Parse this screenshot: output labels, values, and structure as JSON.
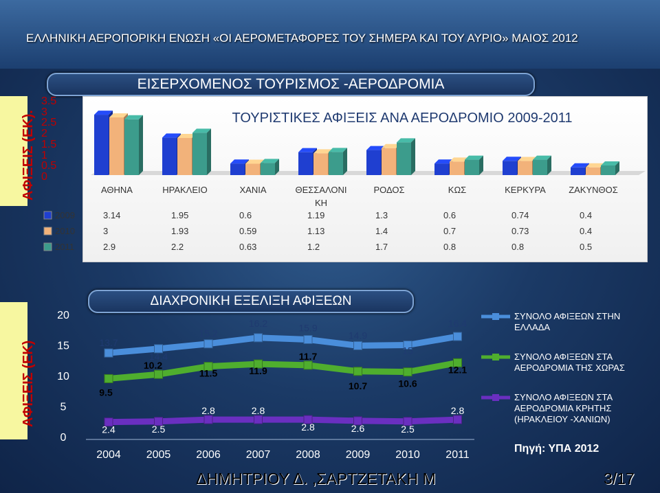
{
  "header": {
    "title": "ΕΛΛΗΝΙΚΗ ΑΕΡΟΠΟΡΙΚΗ ΕΝΩΣΗ «ΟΙ ΑΕΡΟΜΕΤΑΦΟΡΕΣ ΤΟΥ ΣΗΜΕΡΑ ΚΑΙ ΤΟΥ ΑΥΡΙΟ» ΜΑΙΟΣ 2012"
  },
  "section": {
    "title": "ΕΙΣΕΡΧΟΜΕΝΟΣ ΤΟΥΡΙΣΜΟΣ -ΑΕΡΟΔΡΟΜΙΑ"
  },
  "footer": {
    "author": "ΔΗΜΗΤΡΙΟΥ Δ. ,ΣΑΡΤΖΕΤΑΚΗ Μ",
    "page": "3/17"
  },
  "source": "Πηγή: ΥΠΑ 2012",
  "colors": {
    "s2009": "#1f3fd0",
    "s2010": "#f2b27a",
    "s2011": "#3c9c8c",
    "total_greece": "#4a8edb",
    "total_airports": "#4fae2e",
    "total_crete": "#6a2fc0"
  },
  "chart_data": [
    {
      "type": "bar",
      "title": "ΤΟΥΡΙΣΤΙΚΕΣ ΑΦΙΞΕΙΣ ΑΝΑ ΑΕΡΟΔΡΟΜΙΟ 2009-2011",
      "ylabel": "ΑΦΙΞΕΙΣ (ΕΚ).",
      "yticks": [
        "0",
        "0.5",
        "1",
        "1.5",
        "2",
        "2.5",
        "3",
        "3.5"
      ],
      "ylim": [
        0,
        3.5
      ],
      "categories": [
        "ΑΘΗΝΑ",
        "ΗΡΑΚΛΕΙΟ",
        "ΧΑΝΙΑ",
        "ΘΕΣΣΑΛΟΝΙ ΚΗ",
        "ΡΟΔΟΣ",
        "ΚΩΣ",
        "ΚΕΡΚΥΡΑ",
        "ΖΑΚΥΝΘΟΣ"
      ],
      "series": [
        {
          "name": "2009",
          "values": [
            3.14,
            1.95,
            0.6,
            1.19,
            1.3,
            0.6,
            0.74,
            0.4
          ]
        },
        {
          "name": "2010",
          "values": [
            3,
            1.93,
            0.59,
            1.13,
            1.4,
            0.7,
            0.73,
            0.4
          ]
        },
        {
          "name": "2011",
          "values": [
            2.9,
            2.2,
            0.63,
            1.2,
            1.7,
            0.8,
            0.8,
            0.5
          ]
        }
      ]
    },
    {
      "type": "line",
      "title": "ΔΙΑΧΡΟΝΙΚΗ ΕΞΕΛΙΞΗ ΑΦΙΞΕΩΝ",
      "ylabel": "ΑΦΙΞΕΙΣ (ΕΚ)",
      "yticks": [
        "0",
        "5",
        "10",
        "15",
        "20"
      ],
      "ylim": [
        0,
        20
      ],
      "x": [
        "2004",
        "2005",
        "2006",
        "2007",
        "2008",
        "2009",
        "2010",
        "2011"
      ],
      "series": [
        {
          "name": "ΣΥΝΟΛΟ ΑΦΙΞΕΩΝ  ΣΤΗΝ ΕΛΛΑΔΑ",
          "values": [
            13.7,
            14.4,
            15.2,
            16.2,
            15.9,
            14.9,
            15,
            16.4
          ]
        },
        {
          "name": "ΣΥΝΟΛΟ ΑΦΙΞΕΩΝ ΣΤΑ ΑΕΡΟΔΡΟΜΙΑ ΤΗΣ ΧΩΡΑΣ",
          "values": [
            9.5,
            10.2,
            11.5,
            11.9,
            11.7,
            10.7,
            10.6,
            12.1
          ]
        },
        {
          "name": "ΣΥΝΟΛΟ ΑΦΙΞΕΩΝ ΣΤΑ ΑΕΡΟΔΡΟΜΙΑ ΚΡΗΤΗΣ (ΗΡΑΚΛΕΙΟΥ -ΧΑΝΙΩΝ)",
          "values": [
            2.4,
            2.5,
            2.8,
            2.8,
            2.8,
            2.6,
            2.5,
            2.8
          ]
        }
      ]
    }
  ]
}
